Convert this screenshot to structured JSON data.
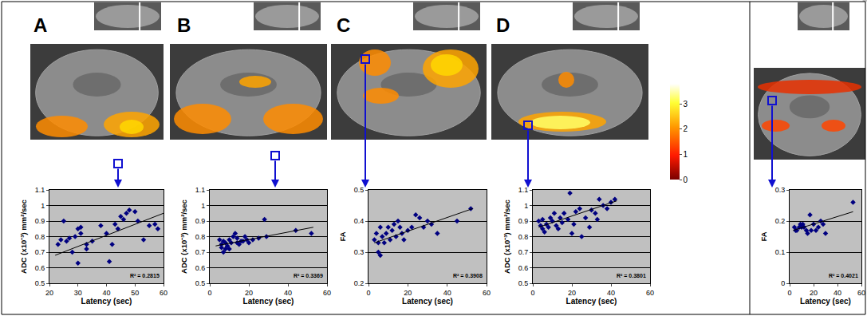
{
  "chart_data": [
    {
      "type": "scatter",
      "title": "A",
      "x_label": "Latency (sec)",
      "y_label": "ADC (x10⁻³) mm²/sec",
      "color": "#000080",
      "marker": "diamond",
      "grid": true,
      "x": [
        23,
        24,
        25,
        26,
        27,
        28,
        29,
        30,
        30,
        31,
        31,
        33,
        33,
        35,
        38,
        40,
        41,
        42,
        43,
        44,
        45,
        46,
        47,
        48,
        50,
        51,
        53,
        55,
        57,
        58
      ],
      "values": [
        0.75,
        0.78,
        0.9,
        0.77,
        0.79,
        0.7,
        0.8,
        0.63,
        0.85,
        0.82,
        0.86,
        0.75,
        0.72,
        0.77,
        0.87,
        0.82,
        0.64,
        0.75,
        0.88,
        0.85,
        0.93,
        0.91,
        0.95,
        0.97,
        0.96,
        0.9,
        0.78,
        0.87,
        0.88,
        0.85
      ],
      "trendline": {
        "x": [
          22,
          60
        ],
        "y": [
          0.68,
          0.95
        ]
      },
      "annotations": [
        "R² = 0.2815"
      ],
      "xlim": [
        20,
        60
      ],
      "xticks": [
        20,
        30,
        40,
        50,
        60
      ],
      "ylim": [
        0.5,
        1.1
      ],
      "yticks": [
        0.5,
        0.6,
        0.7,
        0.8,
        0.9,
        1,
        1.1
      ]
    },
    {
      "type": "scatter",
      "title": "B",
      "x_label": "Latency (sec)",
      "y_label": "ADC (x10⁻³) mm²/sec",
      "color": "#000080",
      "marker": "diamond",
      "grid": true,
      "x": [
        5,
        6,
        6,
        7,
        7,
        8,
        8,
        9,
        10,
        10,
        11,
        12,
        13,
        14,
        14,
        15,
        16,
        17,
        18,
        19,
        20,
        22,
        25,
        28,
        29,
        44,
        52
      ],
      "values": [
        0.78,
        0.75,
        0.73,
        0.77,
        0.7,
        0.76,
        0.72,
        0.74,
        0.78,
        0.72,
        0.76,
        0.8,
        0.82,
        0.76,
        0.79,
        0.75,
        0.77,
        0.77,
        0.8,
        0.78,
        0.76,
        0.78,
        0.79,
        0.91,
        0.8,
        0.84,
        0.82
      ],
      "trendline": {
        "x": [
          3,
          53
        ],
        "y": [
          0.74,
          0.86
        ]
      },
      "annotations": [
        "R² = 0.3369"
      ],
      "xlim": [
        0,
        60
      ],
      "xticks": [
        0,
        20,
        40,
        60
      ],
      "ylim": [
        0.5,
        1.1
      ],
      "yticks": [
        0.5,
        0.6,
        0.7,
        0.8,
        0.9,
        1,
        1.1
      ]
    },
    {
      "type": "scatter",
      "title": "C",
      "x_label": "Latency (sec)",
      "y_label": "FA",
      "color": "#000080",
      "marker": "diamond",
      "grid": true,
      "x": [
        3,
        4,
        5,
        5,
        6,
        6,
        7,
        8,
        9,
        10,
        11,
        12,
        13,
        14,
        15,
        16,
        17,
        18,
        20,
        22,
        24,
        26,
        28,
        30,
        32,
        35,
        45,
        52
      ],
      "values": [
        0.34,
        0.36,
        0.3,
        0.33,
        0.29,
        0.38,
        0.35,
        0.33,
        0.36,
        0.38,
        0.34,
        0.37,
        0.39,
        0.35,
        0.4,
        0.38,
        0.36,
        0.34,
        0.37,
        0.38,
        0.42,
        0.41,
        0.38,
        0.4,
        0.39,
        0.36,
        0.4,
        0.44
      ],
      "trendline": {
        "x": [
          3,
          53
        ],
        "y": [
          0.33,
          0.44
        ]
      },
      "annotations": [
        "R² = 0.3908"
      ],
      "xlim": [
        0,
        60
      ],
      "xticks": [
        0,
        20,
        40,
        60
      ],
      "ylim": [
        0.2,
        0.5
      ],
      "yticks": [
        0.2,
        0.3,
        0.4,
        0.5
      ]
    },
    {
      "type": "scatter",
      "title": "D",
      "x_label": "Latency (sec)",
      "y_label": "ADC (x10⁻³) mm²/sec",
      "color": "#000080",
      "marker": "diamond",
      "grid": true,
      "x": [
        3,
        4,
        5,
        5,
        6,
        7,
        8,
        9,
        10,
        11,
        12,
        13,
        14,
        15,
        16,
        18,
        19,
        20,
        21,
        22,
        24,
        25,
        27,
        29,
        30,
        32,
        33,
        34,
        36,
        38,
        40,
        42
      ],
      "values": [
        0.9,
        0.87,
        0.85,
        0.91,
        0.83,
        0.88,
        0.86,
        0.92,
        0.9,
        0.95,
        0.87,
        0.85,
        0.92,
        0.89,
        0.95,
        0.91,
        1.08,
        0.82,
        0.88,
        0.96,
        0.98,
        0.8,
        0.92,
        0.86,
        0.97,
        0.95,
        0.91,
        1.04,
        1.0,
        0.98,
        1.02,
        1.04
      ],
      "trendline": {
        "x": [
          3,
          43
        ],
        "y": [
          0.86,
          1.03
        ]
      },
      "annotations": [
        "R² = 0.3801"
      ],
      "xlim": [
        0,
        60
      ],
      "xticks": [
        0,
        20,
        40,
        60
      ],
      "ylim": [
        0.5,
        1.1
      ],
      "yticks": [
        0.5,
        0.6,
        0.7,
        0.8,
        0.9,
        1,
        1.1
      ]
    },
    {
      "type": "scatter",
      "x_label": "Latency (sec)",
      "y_label": "FA",
      "color": "#000080",
      "marker": "diamond",
      "grid": true,
      "x": [
        4,
        5,
        6,
        8,
        9,
        10,
        11,
        12,
        14,
        15,
        17,
        18,
        20,
        22,
        24,
        26,
        28,
        30,
        53
      ],
      "values": [
        0.18,
        0.17,
        0.17,
        0.18,
        0.19,
        0.18,
        0.19,
        0.18,
        0.17,
        0.16,
        0.22,
        0.17,
        0.19,
        0.17,
        0.18,
        0.2,
        0.19,
        0.16,
        0.26
      ],
      "trendline": {
        "x": [
          3,
          53
        ],
        "y": [
          0.17,
          0.23
        ]
      },
      "annotations": [
        "R² = 0.4021"
      ],
      "xlim": [
        0,
        60
      ],
      "xticks": [
        0,
        20,
        40,
        60
      ],
      "ylim": [
        0,
        0.3
      ],
      "yticks": [
        0,
        0.1,
        0.2,
        0.3
      ]
    }
  ],
  "colorbar": {
    "range": [
      0,
      3.8
    ],
    "ticks": [
      0,
      1,
      2,
      3
    ]
  }
}
